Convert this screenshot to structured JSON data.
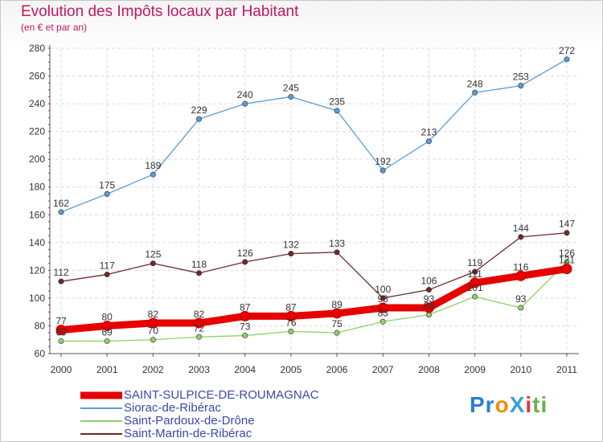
{
  "header": {
    "title": "Evolution des Impôts locaux par Habitant",
    "subtitle": "(en € et par an)"
  },
  "logo": {
    "text": "ProXiti"
  },
  "chart_data": {
    "type": "line",
    "title": "Evolution des Impôts locaux par Habitant",
    "subtitle": "(en € et par an)",
    "xlabel": "",
    "ylabel": "",
    "categories": [
      "2000",
      "2001",
      "2002",
      "2003",
      "2004",
      "2005",
      "2006",
      "2007",
      "2008",
      "2009",
      "2010",
      "2011"
    ],
    "ylim": [
      60,
      280
    ],
    "yticks": [
      60,
      80,
      100,
      120,
      140,
      160,
      180,
      200,
      220,
      240,
      260,
      280
    ],
    "grid": true,
    "legend_position": "bottom-left",
    "series": [
      {
        "name": "SAINT-SULPICE-DE-ROUMAGNAC",
        "color": "#e60000",
        "emphasis": true,
        "values": [
          77,
          80,
          82,
          82,
          87,
          87,
          89,
          93,
          93,
          111,
          116,
          121
        ]
      },
      {
        "name": "Siorac-de-Ribérac",
        "color": "#5b9bd5",
        "values": [
          162,
          175,
          189,
          229,
          240,
          245,
          235,
          192,
          213,
          248,
          253,
          272
        ]
      },
      {
        "name": "Saint-Pardoux-de-Drône",
        "color": "#8fd16a",
        "values": [
          69,
          69,
          70,
          72,
          73,
          76,
          75,
          83,
          88,
          101,
          93,
          126
        ]
      },
      {
        "name": "Saint-Martin-de-Ribérac",
        "color": "#6b2a2a",
        "values": [
          112,
          117,
          125,
          118,
          126,
          132,
          133,
          100,
          106,
          119,
          144,
          147
        ]
      }
    ]
  }
}
